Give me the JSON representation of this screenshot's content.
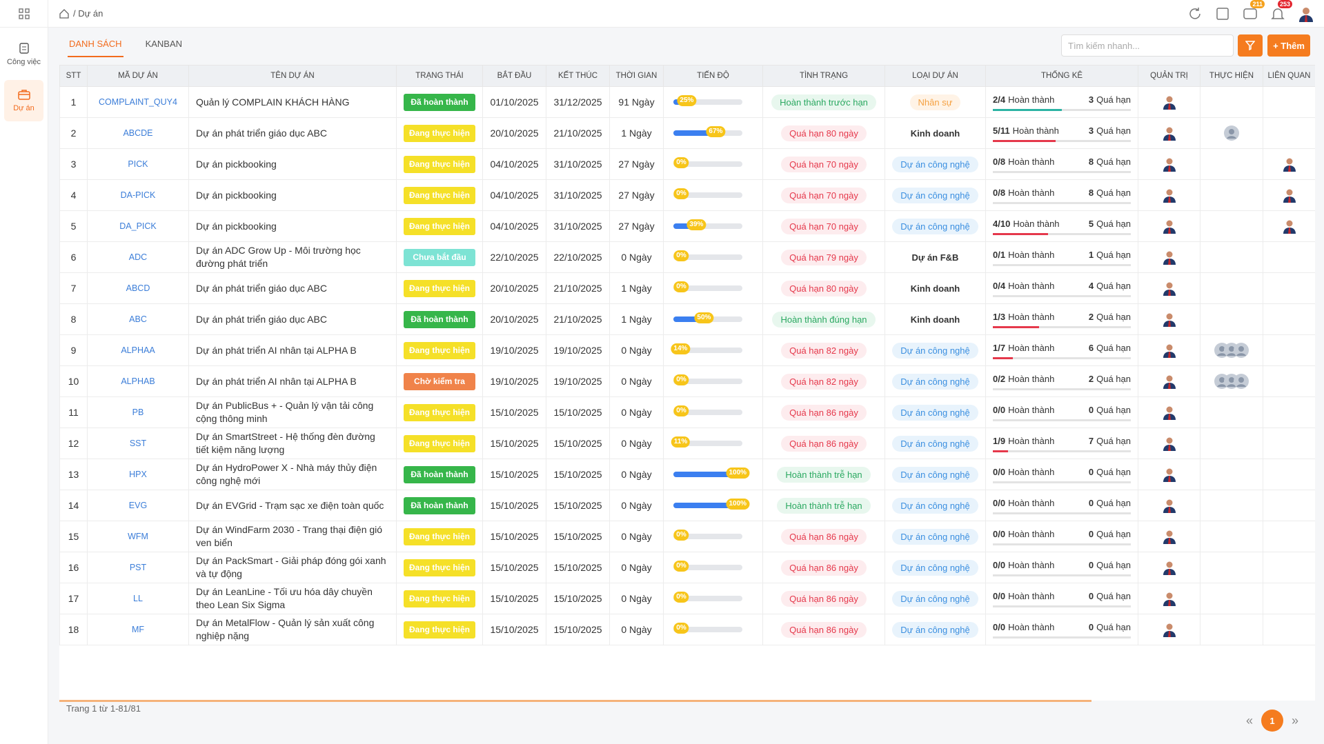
{
  "topbar": {
    "breadcrumb": "/ Dự án",
    "message_badge": "211",
    "notify_badge": "253"
  },
  "sidebar": {
    "items": [
      {
        "label": "Công việc"
      },
      {
        "label": "Dự án"
      }
    ]
  },
  "tabs": [
    "DANH SÁCH",
    "KANBAN"
  ],
  "search_placeholder": "Tìm kiếm nhanh...",
  "add_button": "+ Thêm",
  "table": {
    "columns": [
      "STT",
      "MÃ DỰ ÁN",
      "TÊN DỰ ÁN",
      "TRẠNG THÁI",
      "BẮT ĐẦU",
      "KẾT THÚC",
      "THỜI GIAN",
      "TIẾN ĐỘ",
      "TÌNH TRẠNG",
      "LOẠI DỰ ÁN",
      "THỐNG KÊ",
      "QUẢN TRỊ",
      "THỰC HIỆN",
      "LIÊN QUAN"
    ],
    "rows": [
      {
        "stt": "1",
        "code": "COMPLAINT_QUY4",
        "name": "Quản lý COMPLAIN KHÁCH HÀNG",
        "status": "Đã hoàn thành",
        "status_tone": "green",
        "start": "01/10/2025",
        "end": "31/12/2025",
        "duration": "91 Ngày",
        "progress": 25,
        "progress_label": "25%",
        "state": "Hoàn thành trước hạn",
        "state_tone": "green",
        "type": "Nhân sự",
        "type_tone": "orange",
        "done": "2/4",
        "done_label": "Hoàn thành",
        "overdue": "3",
        "overdue_label": "Quá hạn"
      },
      {
        "stt": "2",
        "code": "ABCDE",
        "name": "Dự án phát triển giáo dục ABC",
        "status": "Đang thực hiện",
        "status_tone": "yellow",
        "start": "20/10/2025",
        "end": "21/10/2025",
        "duration": "1 Ngày",
        "progress": 67,
        "progress_label": "67%",
        "state": "Quá hạn 80 ngày",
        "state_tone": "red",
        "type": "Kinh doanh",
        "type_tone": "plain",
        "done": "5/11",
        "done_label": "Hoàn thành",
        "overdue": "3",
        "overdue_label": "Quá hạn"
      },
      {
        "stt": "3",
        "code": "PICK",
        "name": "Dự án pickbooking",
        "status": "Đang thực hiện",
        "status_tone": "yellow",
        "start": "04/10/2025",
        "end": "31/10/2025",
        "duration": "27 Ngày",
        "progress": 0,
        "progress_label": "0%",
        "state": "Quá hạn 70 ngày",
        "state_tone": "red",
        "type": "Dự án công nghệ",
        "type_tone": "blue",
        "done": "0/8",
        "done_label": "Hoàn thành",
        "overdue": "8",
        "overdue_label": "Quá hạn"
      },
      {
        "stt": "4",
        "code": "DA-PICK",
        "name": "Dự án pickbooking",
        "status": "Đang thực hiện",
        "status_tone": "yellow",
        "start": "04/10/2025",
        "end": "31/10/2025",
        "duration": "27 Ngày",
        "progress": 0,
        "progress_label": "0%",
        "state": "Quá hạn 70 ngày",
        "state_tone": "red",
        "type": "Dự án công nghệ",
        "type_tone": "blue",
        "done": "0/8",
        "done_label": "Hoàn thành",
        "overdue": "8",
        "overdue_label": "Quá hạn"
      },
      {
        "stt": "5",
        "code": "DA_PICK",
        "name": "Dự án pickbooking",
        "status": "Đang thực hiện",
        "status_tone": "yellow",
        "start": "04/10/2025",
        "end": "31/10/2025",
        "duration": "27 Ngày",
        "progress": 39,
        "progress_label": "39%",
        "state": "Quá hạn 70 ngày",
        "state_tone": "red",
        "type": "Dự án công nghệ",
        "type_tone": "blue",
        "done": "4/10",
        "done_label": "Hoàn thành",
        "overdue": "5",
        "overdue_label": "Quá hạn"
      },
      {
        "stt": "6",
        "code": "ADC",
        "name": "Dự án ADC Grow Up - Môi trường học đường phát triển",
        "status": "Chưa bắt đầu",
        "status_tone": "teal",
        "start": "22/10/2025",
        "end": "22/10/2025",
        "duration": "0 Ngày",
        "progress": 0,
        "progress_label": "0%",
        "state": "Quá hạn 79 ngày",
        "state_tone": "red",
        "type": "Dự án F&B",
        "type_tone": "plain",
        "done": "0/1",
        "done_label": "Hoàn thành",
        "overdue": "1",
        "overdue_label": "Quá hạn"
      },
      {
        "stt": "7",
        "code": "ABCD",
        "name": "Dự án phát triển giáo dục ABC",
        "status": "Đang thực hiện",
        "status_tone": "yellow",
        "start": "20/10/2025",
        "end": "21/10/2025",
        "duration": "1 Ngày",
        "progress": 0,
        "progress_label": "0%",
        "state": "Quá hạn 80 ngày",
        "state_tone": "red",
        "type": "Kinh doanh",
        "type_tone": "plain",
        "done": "0/4",
        "done_label": "Hoàn thành",
        "overdue": "4",
        "overdue_label": "Quá hạn"
      },
      {
        "stt": "8",
        "code": "ABC",
        "name": "Dự án phát triển giáo dục ABC",
        "status": "Đã hoàn thành",
        "status_tone": "green",
        "start": "20/10/2025",
        "end": "21/10/2025",
        "duration": "1 Ngày",
        "progress": 50,
        "progress_label": "50%",
        "state": "Hoàn thành đúng hạn",
        "state_tone": "green",
        "type": "Kinh doanh",
        "type_tone": "plain",
        "done": "1/3",
        "done_label": "Hoàn thành",
        "overdue": "2",
        "overdue_label": "Quá hạn"
      },
      {
        "stt": "9",
        "code": "ALPHAA",
        "name": "Dự án phát triển AI nhân tại ALPHA B",
        "status": "Đang thực hiện",
        "status_tone": "yellow",
        "start": "19/10/2025",
        "end": "19/10/2025",
        "duration": "0 Ngày",
        "progress": 14,
        "progress_label": "14%",
        "state": "Quá hạn 82 ngày",
        "state_tone": "red",
        "type": "Dự án công nghệ",
        "type_tone": "blue",
        "done": "1/7",
        "done_label": "Hoàn thành",
        "overdue": "6",
        "overdue_label": "Quá hạn"
      },
      {
        "stt": "10",
        "code": "ALPHAB",
        "name": "Dự án phát triển AI nhân tại ALPHA B",
        "status": "Chờ kiểm tra",
        "status_tone": "orange",
        "start": "19/10/2025",
        "end": "19/10/2025",
        "duration": "0 Ngày",
        "progress": 0,
        "progress_label": "0%",
        "state": "Quá hạn 82 ngày",
        "state_tone": "red",
        "type": "Dự án công nghệ",
        "type_tone": "blue",
        "done": "0/2",
        "done_label": "Hoàn thành",
        "overdue": "2",
        "overdue_label": "Quá hạn"
      },
      {
        "stt": "11",
        "code": "PB",
        "name": "Dự án PublicBus + - Quản lý vận tải công cộng thông minh",
        "status": "Đang thực hiện",
        "status_tone": "yellow",
        "start": "15/10/2025",
        "end": "15/10/2025",
        "duration": "0 Ngày",
        "progress": 0,
        "progress_label": "0%",
        "state": "Quá hạn 86 ngày",
        "state_tone": "red",
        "type": "Dự án công nghệ",
        "type_tone": "blue",
        "done": "0/0",
        "done_label": "Hoàn thành",
        "overdue": "0",
        "overdue_label": "Quá hạn"
      },
      {
        "stt": "12",
        "code": "SST",
        "name": "Dự án SmartStreet - Hệ thống đèn đường tiết kiệm năng lượng",
        "status": "Đang thực hiện",
        "status_tone": "yellow",
        "start": "15/10/2025",
        "end": "15/10/2025",
        "duration": "0 Ngày",
        "progress": 11,
        "progress_label": "11%",
        "state": "Quá hạn 86 ngày",
        "state_tone": "red",
        "type": "Dự án công nghệ",
        "type_tone": "blue",
        "done": "1/9",
        "done_label": "Hoàn thành",
        "overdue": "7",
        "overdue_label": "Quá hạn"
      },
      {
        "stt": "13",
        "code": "HPX",
        "name": "Dự án HydroPower X - Nhà máy thủy điện công nghệ mới",
        "status": "Đã hoàn thành",
        "status_tone": "green",
        "start": "15/10/2025",
        "end": "15/10/2025",
        "duration": "0 Ngày",
        "progress": 100,
        "progress_label": "100%",
        "state": "Hoàn thành trễ hạn",
        "state_tone": "green",
        "type": "Dự án công nghệ",
        "type_tone": "blue",
        "done": "0/0",
        "done_label": "Hoàn thành",
        "overdue": "0",
        "overdue_label": "Quá hạn"
      },
      {
        "stt": "14",
        "code": "EVG",
        "name": "Dự án EVGrid - Trạm sạc xe điện toàn quốc",
        "status": "Đã hoàn thành",
        "status_tone": "green",
        "start": "15/10/2025",
        "end": "15/10/2025",
        "duration": "0 Ngày",
        "progress": 100,
        "progress_label": "100%",
        "state": "Hoàn thành trễ hạn",
        "state_tone": "green",
        "type": "Dự án công nghệ",
        "type_tone": "blue",
        "done": "0/0",
        "done_label": "Hoàn thành",
        "overdue": "0",
        "overdue_label": "Quá hạn"
      },
      {
        "stt": "15",
        "code": "WFM",
        "name": "Dự án WindFarm 2030 - Trang thại điện gió ven biển",
        "status": "Đang thực hiện",
        "status_tone": "yellow",
        "start": "15/10/2025",
        "end": "15/10/2025",
        "duration": "0 Ngày",
        "progress": 0,
        "progress_label": "0%",
        "state": "Quá hạn 86 ngày",
        "state_tone": "red",
        "type": "Dự án công nghệ",
        "type_tone": "blue",
        "done": "0/0",
        "done_label": "Hoàn thành",
        "overdue": "0",
        "overdue_label": "Quá hạn"
      },
      {
        "stt": "16",
        "code": "PST",
        "name": "Dự án PackSmart - Giải pháp đóng gói xanh và tự động",
        "status": "Đang thực hiện",
        "status_tone": "yellow",
        "start": "15/10/2025",
        "end": "15/10/2025",
        "duration": "0 Ngày",
        "progress": 0,
        "progress_label": "0%",
        "state": "Quá hạn 86 ngày",
        "state_tone": "red",
        "type": "Dự án công nghệ",
        "type_tone": "blue",
        "done": "0/0",
        "done_label": "Hoàn thành",
        "overdue": "0",
        "overdue_label": "Quá hạn"
      },
      {
        "stt": "17",
        "code": "LL",
        "name": "Dự án LeanLine - Tối ưu hóa dây chuyền theo Lean Six Sigma",
        "status": "Đang thực hiện",
        "status_tone": "yellow",
        "start": "15/10/2025",
        "end": "15/10/2025",
        "duration": "0 Ngày",
        "progress": 0,
        "progress_label": "0%",
        "state": "Quá hạn 86 ngày",
        "state_tone": "red",
        "type": "Dự án công nghệ",
        "type_tone": "blue",
        "done": "0/0",
        "done_label": "Hoàn thành",
        "overdue": "0",
        "overdue_label": "Quá hạn"
      },
      {
        "stt": "18",
        "code": "MF",
        "name": "Dự án MetalFlow - Quản lý sản xuất công nghiệp nặng",
        "status": "Đang thực hiện",
        "status_tone": "yellow",
        "start": "15/10/2025",
        "end": "15/10/2025",
        "duration": "0 Ngày",
        "progress": 0,
        "progress_label": "0%",
        "state": "Quá hạn 86 ngày",
        "state_tone": "red",
        "type": "Dự án công nghệ",
        "type_tone": "blue",
        "done": "0/0",
        "done_label": "Hoàn thành",
        "overdue": "0",
        "overdue_label": "Quá hạn"
      }
    ]
  },
  "footer": {
    "summary": "Trang 1 từ 1-81/81",
    "prev": "«",
    "page": "1",
    "next": "»"
  }
}
